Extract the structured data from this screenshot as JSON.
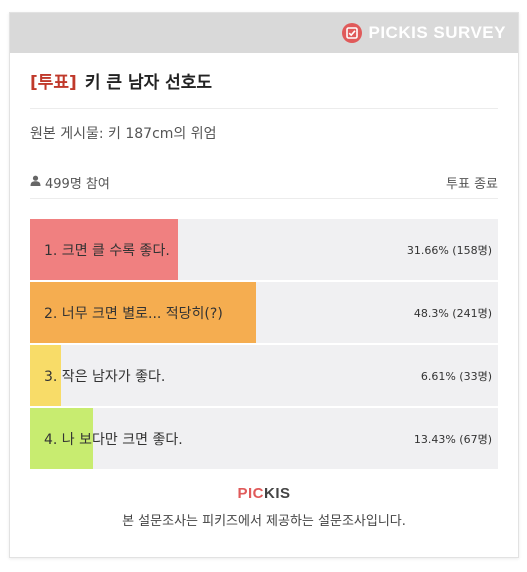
{
  "brand": {
    "name": "PICKIS SURVEY",
    "icon": "check-badge-icon"
  },
  "survey": {
    "tag": "[투표]",
    "title": "키 큰 남자 선호도",
    "source": "원본 게시물: 키 187cm의 위엄",
    "participants": "499명 참여",
    "status": "투표 종료"
  },
  "options": [
    {
      "label": "1. 크면 클 수록 좋다.",
      "result": "31.66% (158명)",
      "percent": 31.66,
      "color": "#f08080"
    },
    {
      "label": "2. 너무 크면 별로... 적당히(?)",
      "result": "48.3% (241명)",
      "percent": 48.3,
      "color": "#f5ad50"
    },
    {
      "label": "3. 작은 남자가 좋다.",
      "result": "6.61% (33명)",
      "percent": 6.61,
      "color": "#f8dc68"
    },
    {
      "label": "4. 나 보다만 크면 좋다.",
      "result": "13.43% (67명)",
      "percent": 13.43,
      "color": "#c8ec70"
    }
  ],
  "footer": {
    "logo_accent": "PIC",
    "logo_rest": "KIS",
    "text": "본 설문조사는 피키즈에서 제공하는 설문조사입니다."
  }
}
